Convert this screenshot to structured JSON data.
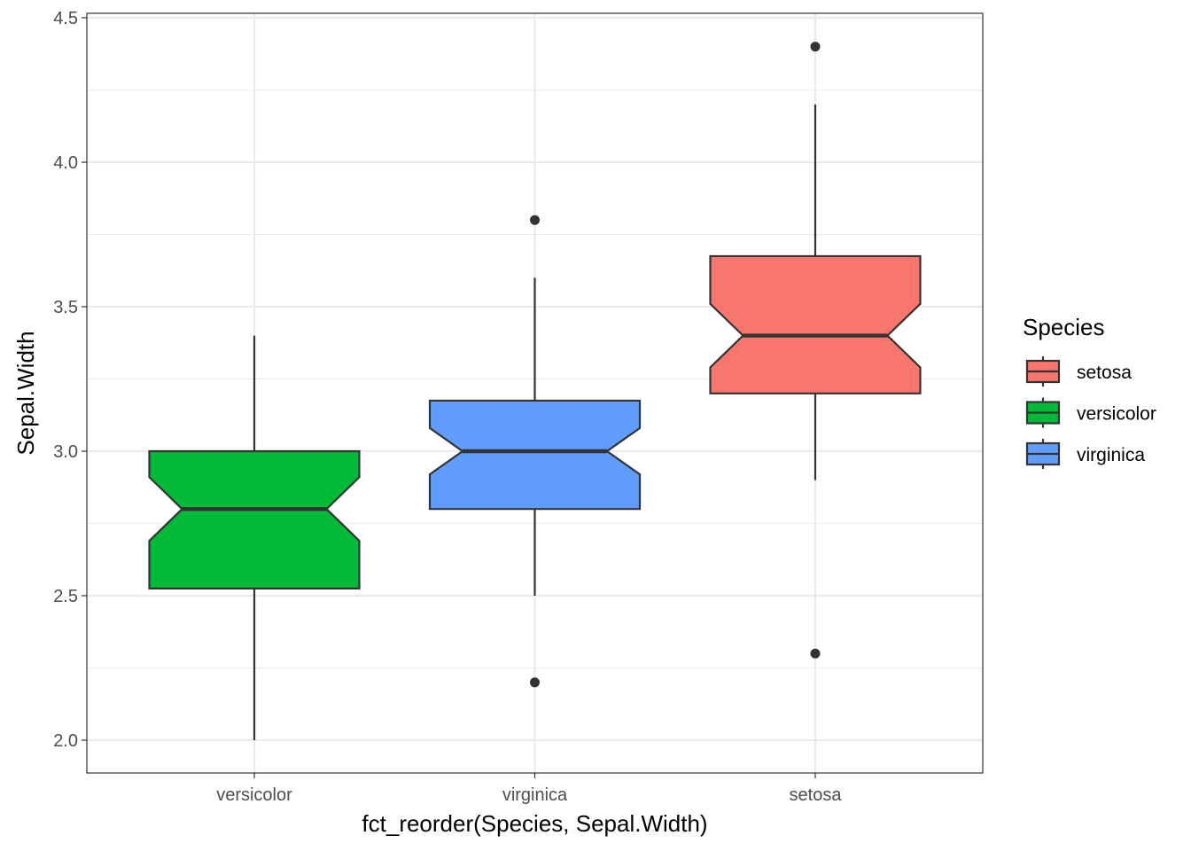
{
  "chart_data": {
    "type": "boxplot",
    "title": "",
    "xlabel": "fct_reorder(Species, Sepal.Width)",
    "ylabel": "Sepal.Width",
    "ylim": [
      1.89,
      4.5
    ],
    "y_ticks": [
      "2.0",
      "2.5",
      "3.0",
      "3.5",
      "4.0",
      "4.5"
    ],
    "y_tick_values": [
      2.0,
      2.5,
      3.0,
      3.5,
      4.0,
      4.5
    ],
    "y_minor_ticks": [
      2.25,
      2.75,
      3.25,
      3.75,
      4.25
    ],
    "categories": [
      "versicolor",
      "virginica",
      "setosa"
    ],
    "notched": true,
    "grid": true,
    "legend": {
      "title": "Species",
      "position": "right",
      "entries": [
        {
          "label": "setosa",
          "color": "#F8766D"
        },
        {
          "label": "versicolor",
          "color": "#00BA38"
        },
        {
          "label": "virginica",
          "color": "#619CFF"
        }
      ]
    },
    "series": [
      {
        "name": "versicolor",
        "color": "#00BA38",
        "whisker_low": 2.0,
        "q1": 2.525,
        "median": 2.8,
        "q3": 3.0,
        "whisker_high": 3.4,
        "notch_low": 2.69,
        "notch_high": 2.91,
        "outliers": []
      },
      {
        "name": "virginica",
        "color": "#619CFF",
        "whisker_low": 2.5,
        "q1": 2.8,
        "median": 3.0,
        "q3": 3.175,
        "whisker_high": 3.6,
        "notch_low": 2.92,
        "notch_high": 3.08,
        "outliers": [
          3.8,
          2.2
        ]
      },
      {
        "name": "setosa",
        "color": "#F8766D",
        "whisker_low": 2.9,
        "q1": 3.2,
        "median": 3.4,
        "q3": 3.675,
        "whisker_high": 4.2,
        "notch_low": 3.29,
        "notch_high": 3.51,
        "outliers": [
          4.4,
          2.3
        ]
      }
    ]
  }
}
